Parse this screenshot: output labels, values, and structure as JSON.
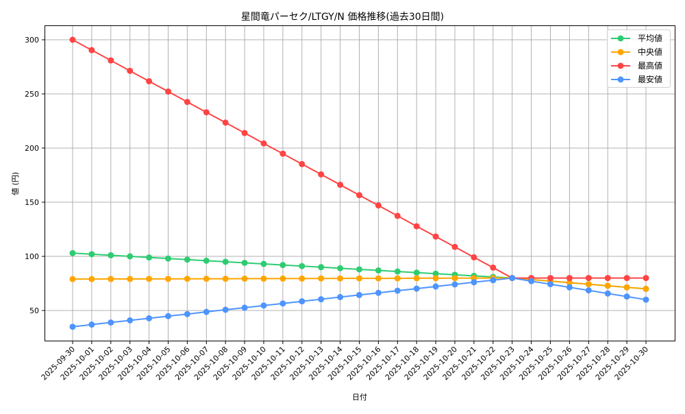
{
  "chart_data": {
    "type": "line",
    "title": "星間竜パーセク/LTGY/N 価格推移(過去30日間)",
    "xlabel": "日付",
    "ylabel": "値 (円)",
    "ylim": [
      22,
      313
    ],
    "yticks": [
      50,
      100,
      150,
      200,
      250,
      300
    ],
    "grid": true,
    "legend_position": "upper right",
    "categories": [
      "2025-09-30",
      "2025-10-01",
      "2025-10-02",
      "2025-10-03",
      "2025-10-04",
      "2025-10-05",
      "2025-10-06",
      "2025-10-07",
      "2025-10-08",
      "2025-10-09",
      "2025-10-10",
      "2025-10-11",
      "2025-10-12",
      "2025-10-13",
      "2025-10-14",
      "2025-10-15",
      "2025-10-16",
      "2025-10-17",
      "2025-10-18",
      "2025-10-19",
      "2025-10-20",
      "2025-10-21",
      "2025-10-22",
      "2025-10-23",
      "2025-10-24",
      "2025-10-25",
      "2025-10-26",
      "2025-10-27",
      "2025-10-28",
      "2025-10-29",
      "2025-10-30"
    ],
    "series": [
      {
        "name": "平均値",
        "color": "#2ecc71",
        "values": [
          103,
          102,
          101,
          100,
          99,
          98,
          97,
          96,
          95,
          94,
          93,
          92,
          91,
          90,
          89,
          88,
          87,
          86,
          85,
          84,
          83,
          82,
          81,
          80,
          78.6,
          77.1,
          75.7,
          74.3,
          72.9,
          71.4,
          70
        ]
      },
      {
        "name": "中央値",
        "color": "#ffa500",
        "values": [
          79,
          79,
          79.1,
          79.1,
          79.2,
          79.2,
          79.3,
          79.3,
          79.3,
          79.4,
          79.4,
          79.5,
          79.5,
          79.6,
          79.6,
          79.7,
          79.7,
          79.7,
          79.8,
          79.8,
          79.9,
          79.9,
          80,
          80,
          78.6,
          77.1,
          75.7,
          74.3,
          72.9,
          71.4,
          70
        ]
      },
      {
        "name": "最高値",
        "color": "#ff4444",
        "values": [
          300,
          290.4,
          280.9,
          271.3,
          261.7,
          252.2,
          242.6,
          233,
          223.5,
          213.9,
          204.3,
          194.8,
          185.2,
          175.7,
          166.1,
          156.5,
          147,
          137.4,
          127.8,
          118.3,
          108.7,
          99.1,
          89.6,
          80,
          80,
          80,
          80,
          80,
          80,
          80,
          80
        ]
      },
      {
        "name": "最安値",
        "color": "#4d94ff",
        "values": [
          35,
          37,
          38.9,
          40.9,
          42.8,
          44.8,
          46.7,
          48.7,
          50.7,
          52.6,
          54.6,
          56.5,
          58.5,
          60.4,
          62.4,
          64.3,
          66.3,
          68.3,
          70.2,
          72.2,
          74.1,
          76.1,
          78,
          80,
          77.1,
          74.3,
          71.4,
          68.6,
          65.7,
          62.9,
          60
        ]
      }
    ]
  }
}
